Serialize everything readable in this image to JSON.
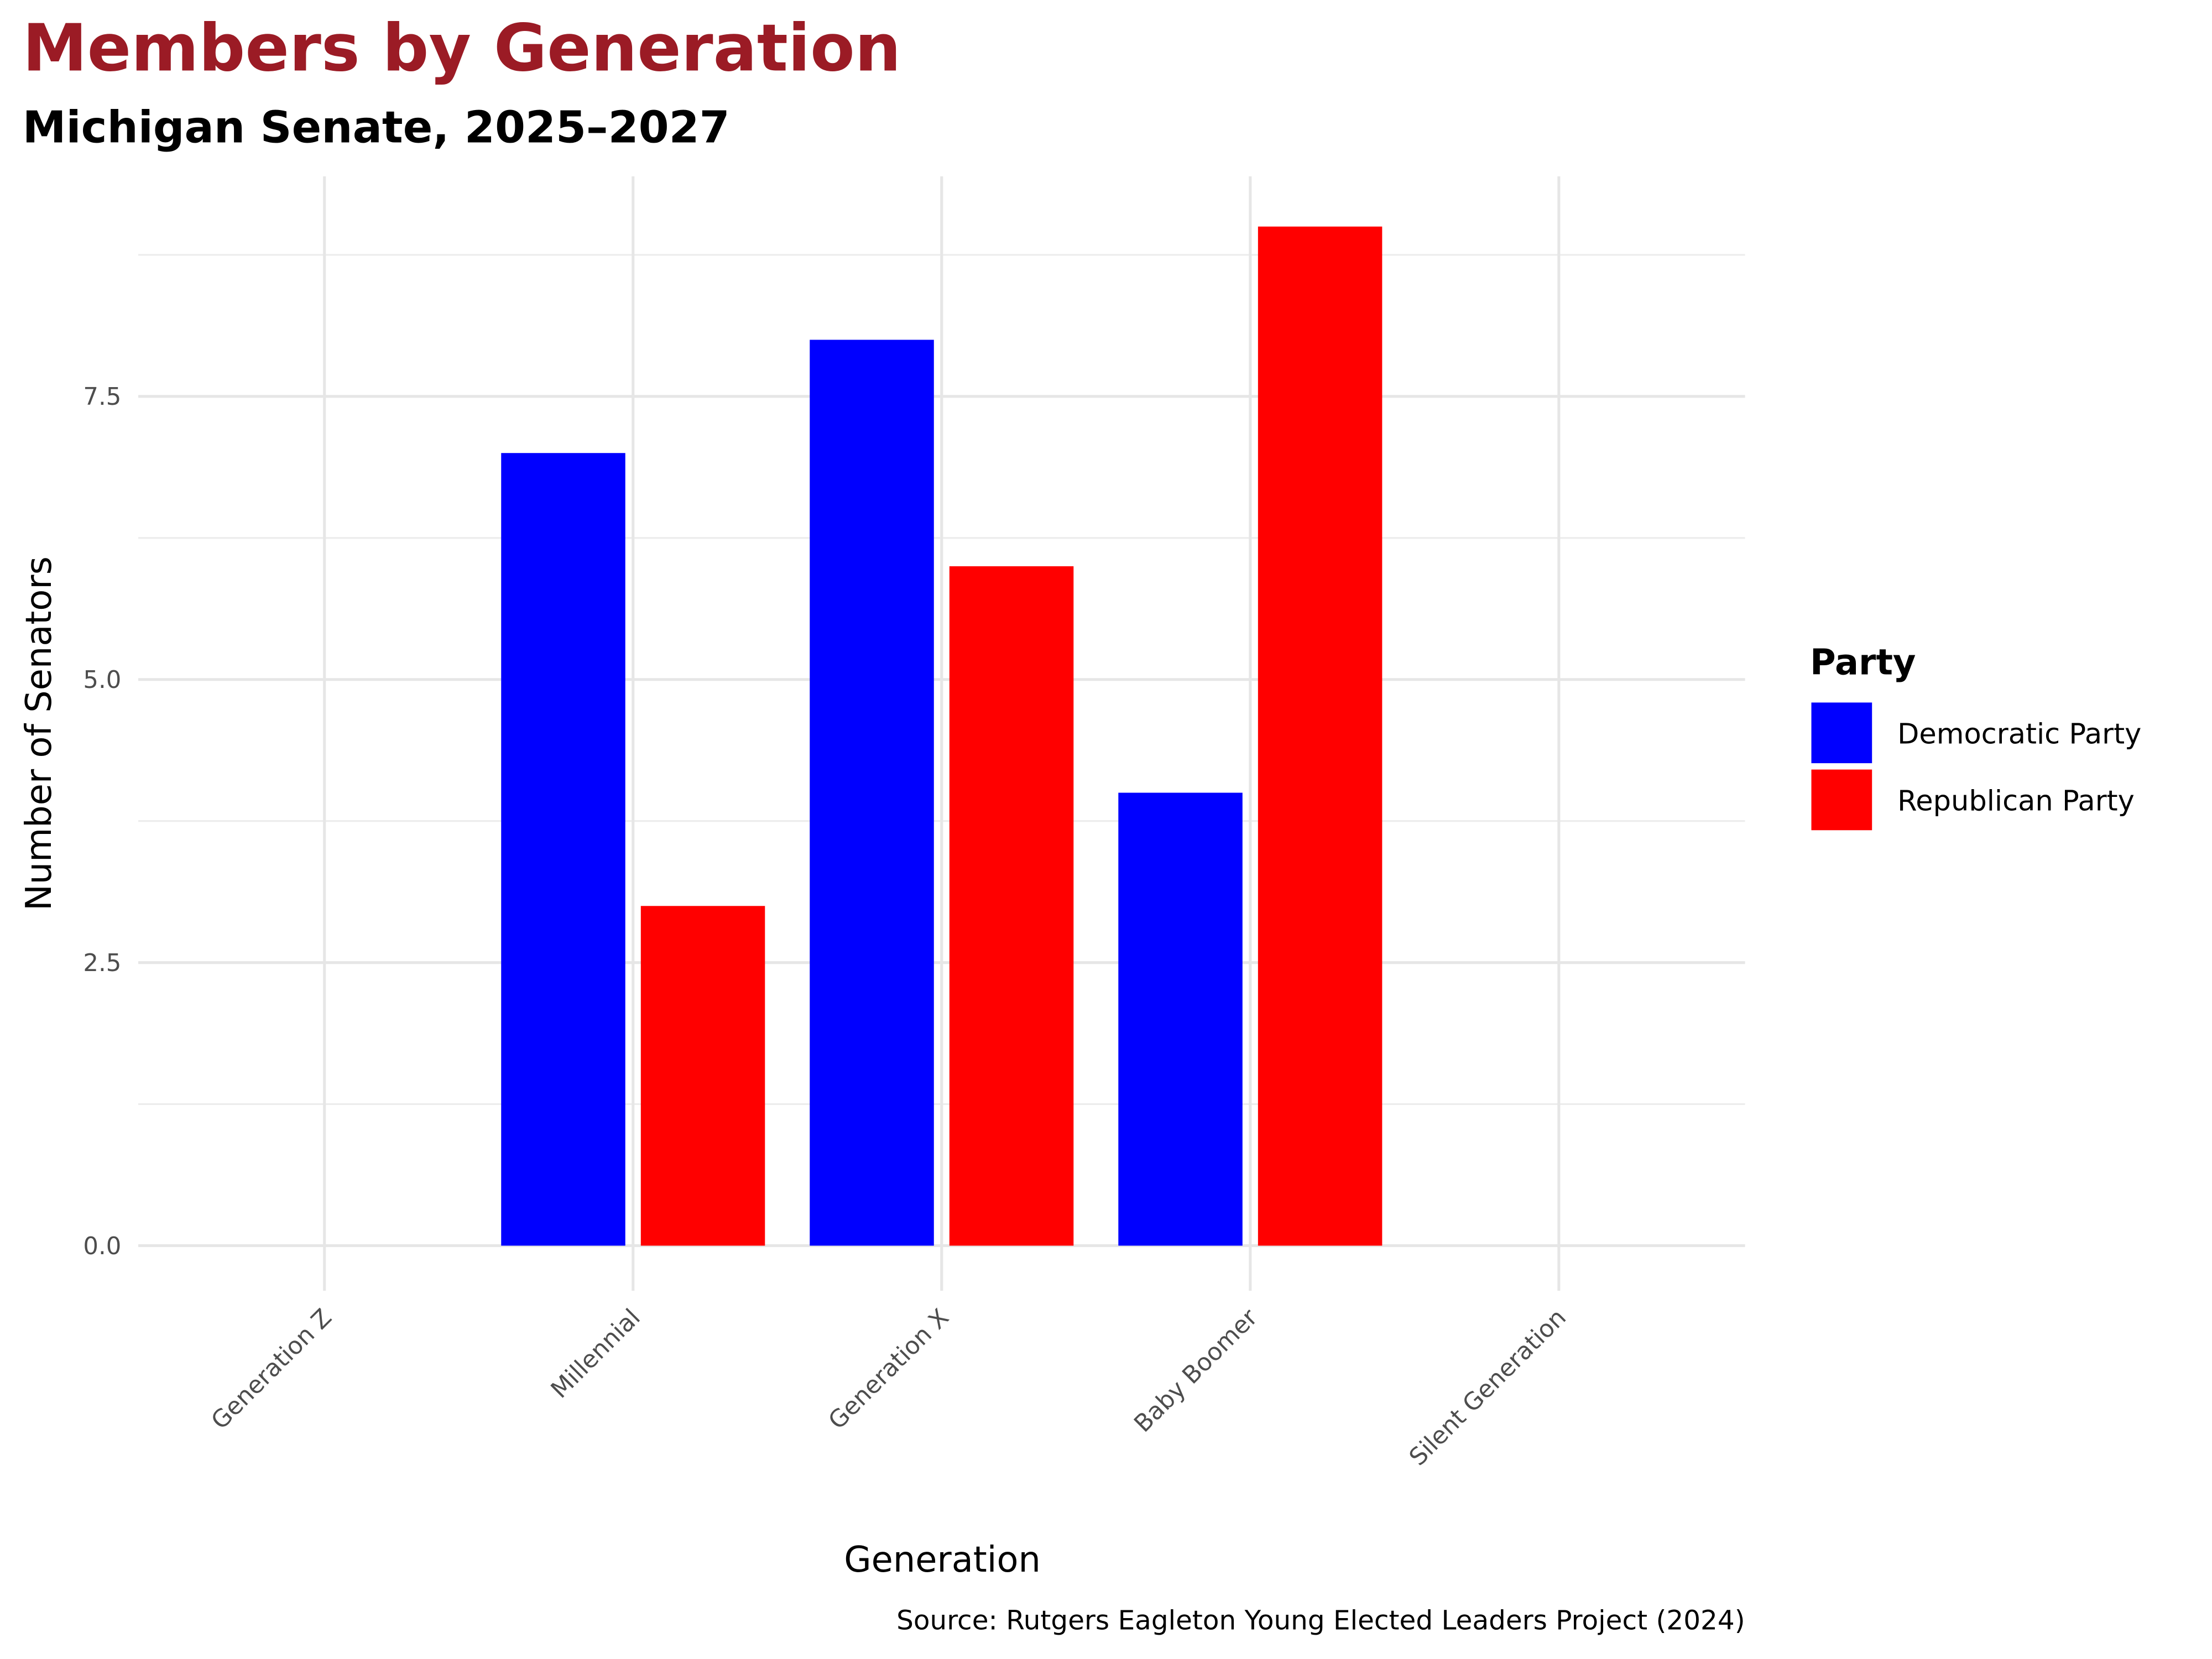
{
  "chart_data": {
    "type": "bar",
    "title": "Members by Generation",
    "subtitle": "Michigan Senate, 2025–2027",
    "xlabel": "Generation",
    "ylabel": "Number of Senators",
    "caption": "Source: Rutgers Eagleton Young Elected Leaders Project (2024)",
    "categories": [
      "Generation Z",
      "Millennial",
      "Generation X",
      "Baby Boomer",
      "Silent Generation"
    ],
    "series": [
      {
        "name": "Democratic Party",
        "color": "#0000ff",
        "values": [
          0,
          7,
          8,
          4,
          0
        ]
      },
      {
        "name": "Republican Party",
        "color": "#ff0000",
        "values": [
          0,
          3,
          6,
          9,
          0
        ]
      }
    ],
    "ylim": [
      -0.45,
      9.4
    ],
    "yticks": [
      0,
      2.5,
      5,
      7.5
    ],
    "ytick_labels": [
      "0.0",
      "2.5",
      "5.0",
      "7.5"
    ],
    "grid": true,
    "legend": {
      "title": "Party",
      "placement": "right"
    },
    "title_color": "#9b1b25"
  }
}
